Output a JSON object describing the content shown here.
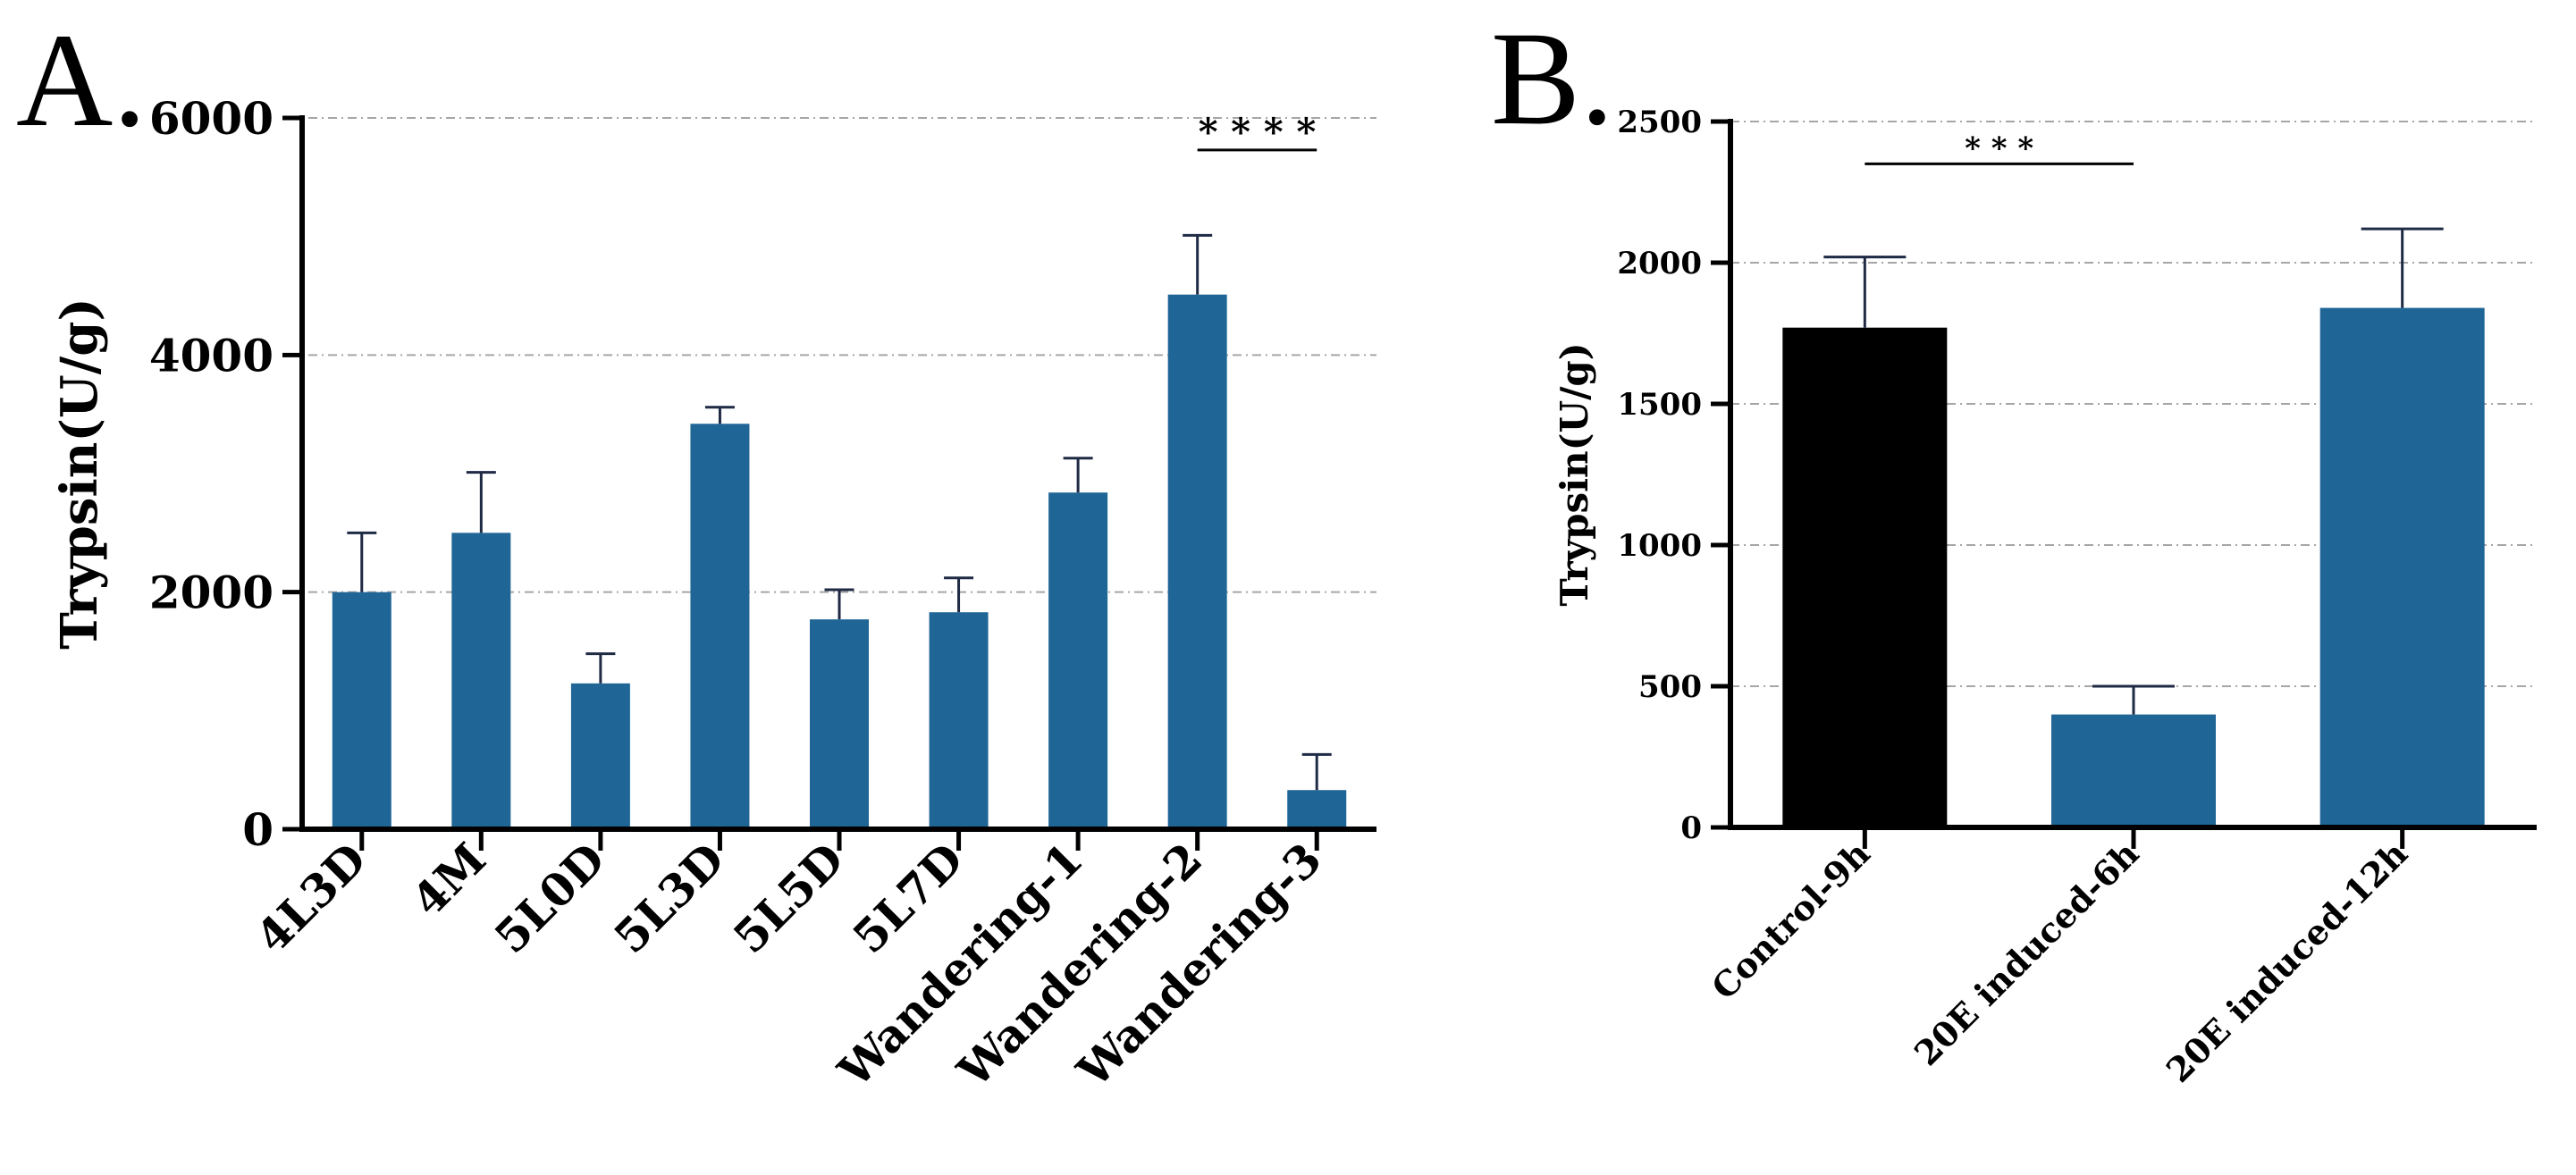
{
  "chart_data": [
    {
      "panel": "A.",
      "type": "bar",
      "ylabel": "Trypsin(U/g)",
      "ylim": [
        0,
        6000
      ],
      "yticks": [
        0,
        2000,
        4000,
        6000
      ],
      "grid": true,
      "categories": [
        "4L3D",
        "4M",
        "5L0D",
        "5L3D",
        "5L5D",
        "5L7D",
        "Wandering-1",
        "Wandering-2",
        "Wandering-3"
      ],
      "values": [
        2000,
        2500,
        1230,
        3420,
        1770,
        1830,
        2840,
        4510,
        330
      ],
      "errors": [
        500,
        510,
        250,
        140,
        250,
        290,
        290,
        500,
        300
      ],
      "colors": [
        "#1f6596",
        "#1f6596",
        "#1f6596",
        "#1f6596",
        "#1f6596",
        "#1f6596",
        "#1f6596",
        "#1f6596",
        "#1f6596"
      ],
      "significance": [
        {
          "from": 7,
          "to": 8,
          "label": "* * * *",
          "y": 5730
        }
      ]
    },
    {
      "panel": "B.",
      "type": "bar",
      "ylabel": "Trypsin(U/g)",
      "ylim": [
        0,
        2500
      ],
      "yticks": [
        0,
        500,
        1000,
        1500,
        2000,
        2500
      ],
      "grid": true,
      "categories": [
        "Control-9h",
        "20E induced-6h",
        "20E induced-12h"
      ],
      "values": [
        1770,
        400,
        1840
      ],
      "errors": [
        250,
        100,
        280
      ],
      "colors": [
        "#000000",
        "#1f6596",
        "#1f6596"
      ],
      "significance": [
        {
          "from": 0,
          "to": 1,
          "label": "* * *",
          "y": 2350
        }
      ]
    }
  ]
}
